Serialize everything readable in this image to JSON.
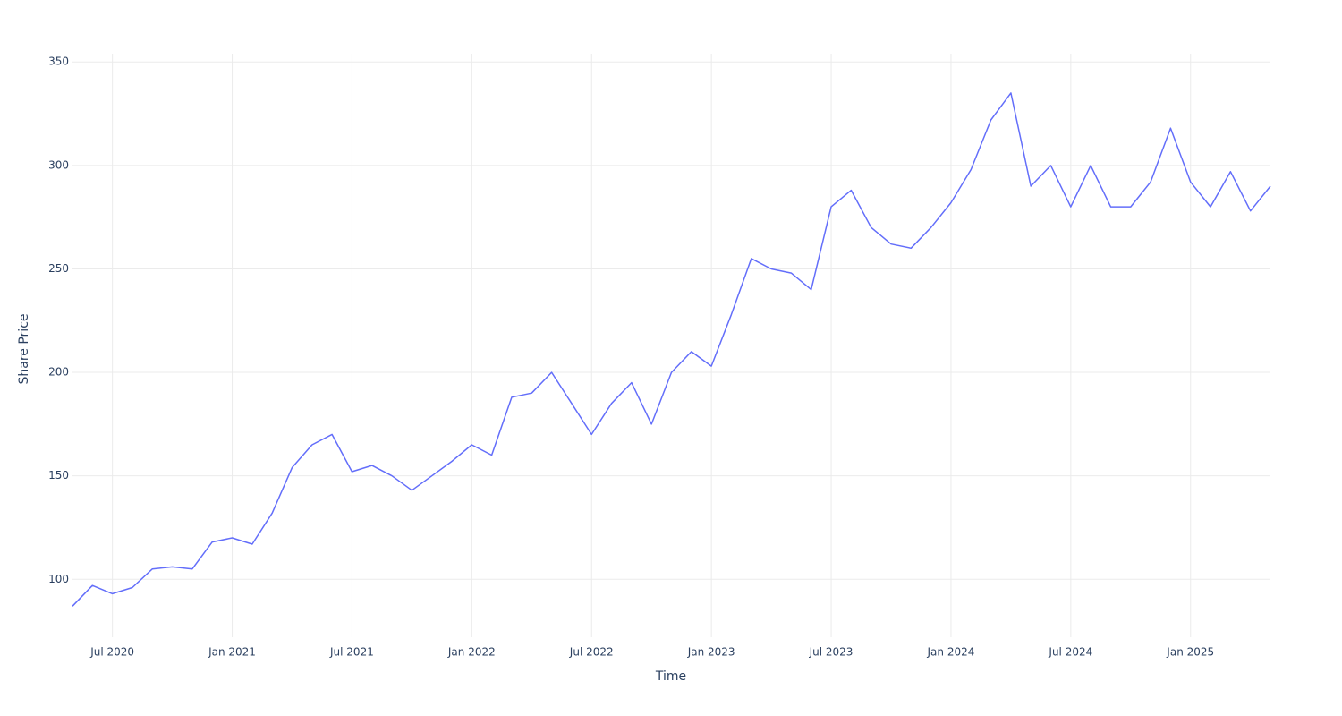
{
  "chart_data": {
    "type": "line",
    "x_label": "Time",
    "y_label": "Share Price",
    "x": [
      "2020-05",
      "2020-06",
      "2020-07",
      "2020-08",
      "2020-09",
      "2020-10",
      "2020-11",
      "2020-12",
      "2021-01",
      "2021-02",
      "2021-03",
      "2021-04",
      "2021-05",
      "2021-06",
      "2021-07",
      "2021-08",
      "2021-09",
      "2021-10",
      "2021-11",
      "2021-12",
      "2022-01",
      "2022-02",
      "2022-03",
      "2022-04",
      "2022-05",
      "2022-06",
      "2022-07",
      "2022-08",
      "2022-09",
      "2022-10",
      "2022-11",
      "2022-12",
      "2023-01",
      "2023-02",
      "2023-03",
      "2023-04",
      "2023-05",
      "2023-06",
      "2023-07",
      "2023-08",
      "2023-09",
      "2023-10",
      "2023-11",
      "2023-12",
      "2024-01",
      "2024-02",
      "2024-03",
      "2024-04",
      "2024-05",
      "2024-06",
      "2024-07",
      "2024-08",
      "2024-09",
      "2024-10",
      "2024-11",
      "2024-12",
      "2025-01",
      "2025-02",
      "2025-03",
      "2025-04",
      "2025-05"
    ],
    "series": [
      {
        "color": "#636efa",
        "values": [
          87,
          97,
          93,
          96,
          105,
          106,
          105,
          118,
          120,
          117,
          132,
          154,
          165,
          170,
          152,
          155,
          150,
          143,
          150,
          157,
          165,
          160,
          188,
          190,
          200,
          185,
          170,
          185,
          195,
          175,
          200,
          210,
          203,
          228,
          255,
          250,
          248,
          240,
          280,
          288,
          270,
          262,
          260,
          270,
          282,
          298,
          322,
          335,
          290,
          300,
          280,
          300,
          280,
          280,
          292,
          318,
          292,
          280,
          297,
          278,
          290
        ]
      }
    ],
    "xlim": [
      "2020-05",
      "2025-05"
    ],
    "ylim": [
      72,
      354
    ],
    "xticks": [
      {
        "value": "2020-07",
        "label": "Jul 2020"
      },
      {
        "value": "2021-01",
        "label": "Jan 2021"
      },
      {
        "value": "2021-07",
        "label": "Jul 2021"
      },
      {
        "value": "2022-01",
        "label": "Jan 2022"
      },
      {
        "value": "2022-07",
        "label": "Jul 2022"
      },
      {
        "value": "2023-01",
        "label": "Jan 2023"
      },
      {
        "value": "2023-07",
        "label": "Jul 2023"
      },
      {
        "value": "2024-01",
        "label": "Jan 2024"
      },
      {
        "value": "2024-07",
        "label": "Jul 2024"
      },
      {
        "value": "2025-01",
        "label": "Jan 2025"
      }
    ],
    "yticks": [
      100,
      150,
      200,
      250,
      300,
      350
    ],
    "grid": true
  }
}
